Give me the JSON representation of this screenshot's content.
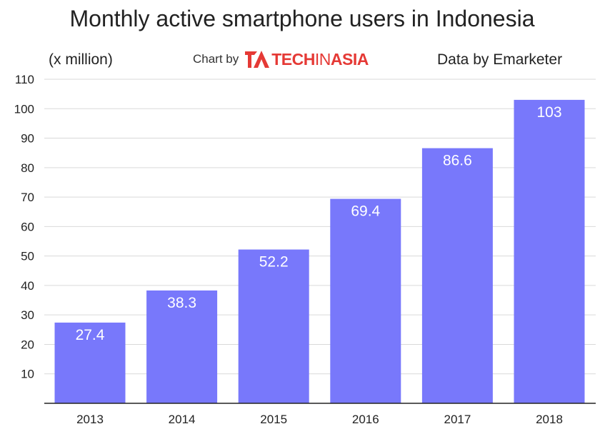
{
  "header": {
    "title": "Monthly active smartphone users in Indonesia",
    "unit": "(x million)",
    "credit_prefix": "Chart by",
    "logo_tech": "TECH",
    "logo_in": "IN",
    "logo_asia": "ASIA",
    "source": "Data by Emarketer"
  },
  "colors": {
    "bar": "#7878fb",
    "grid": "#d9d9d9",
    "axis": "#222222",
    "brand": "#e53935"
  },
  "chart_data": {
    "type": "bar",
    "title": "Monthly active smartphone users in Indonesia",
    "xlabel": "",
    "ylabel": "(x million)",
    "categories": [
      "2013",
      "2014",
      "2015",
      "2016",
      "2017",
      "2018"
    ],
    "values": [
      27.4,
      38.3,
      52.2,
      69.4,
      86.6,
      103
    ],
    "data_labels": [
      "27.4",
      "38.3",
      "52.2",
      "69.4",
      "86.6",
      "103"
    ],
    "ylim": [
      0,
      110
    ],
    "yticks": [
      10,
      20,
      30,
      40,
      50,
      60,
      70,
      80,
      90,
      100,
      110
    ],
    "grid": true,
    "legend": "none"
  }
}
